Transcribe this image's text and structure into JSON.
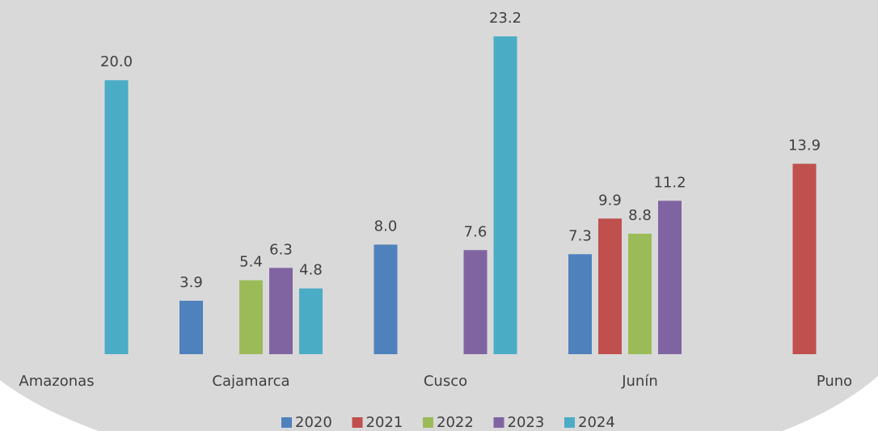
{
  "chart_data": {
    "type": "bar",
    "categories": [
      "Amazonas",
      "Cajamarca",
      "Cusco",
      "Junín",
      "Puno"
    ],
    "series": [
      {
        "name": "2020",
        "color": "#4f81bd",
        "values": [
          null,
          3.9,
          8.0,
          7.3,
          null
        ],
        "value_labels": [
          null,
          "3.9",
          "8.0",
          "7.3",
          null
        ]
      },
      {
        "name": "2021",
        "color": "#c0504d",
        "values": [
          null,
          null,
          null,
          9.9,
          13.9
        ],
        "value_labels": [
          null,
          null,
          null,
          "9.9",
          "13.9"
        ]
      },
      {
        "name": "2022",
        "color": "#9bbb59",
        "values": [
          null,
          5.4,
          null,
          8.8,
          null
        ],
        "value_labels": [
          null,
          "5.4",
          null,
          "8.8",
          null
        ]
      },
      {
        "name": "2023",
        "color": "#8064a2",
        "values": [
          null,
          6.3,
          7.6,
          11.2,
          null
        ],
        "value_labels": [
          null,
          "6.3",
          "7.6",
          "11.2",
          null
        ]
      },
      {
        "name": "2024",
        "color": "#4bacc6",
        "values": [
          20.0,
          4.8,
          23.2,
          null,
          null
        ],
        "value_labels": [
          "20.0",
          "4.8",
          "23.2",
          null,
          null
        ]
      }
    ],
    "legend": "bottom"
  }
}
